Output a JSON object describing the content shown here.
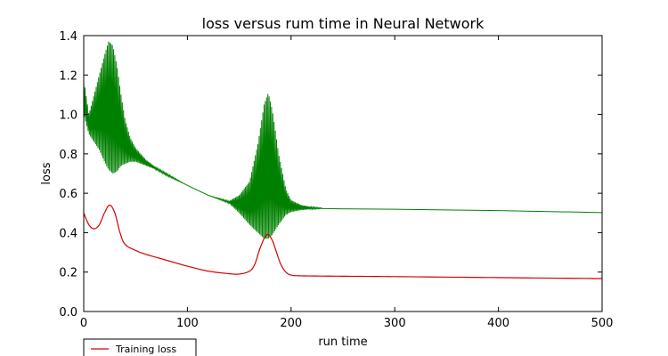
{
  "chart_data": {
    "type": "line",
    "title": "loss versus rum time in Neural Network",
    "xlabel": "run time",
    "ylabel": "loss",
    "xlim": [
      0,
      500
    ],
    "ylim": [
      0.0,
      1.4
    ],
    "xticks": [
      0,
      100,
      200,
      300,
      400,
      500
    ],
    "yticks": [
      0.0,
      0.2,
      0.4,
      0.6,
      0.8,
      1.0,
      1.2,
      1.4
    ],
    "xtick_labels": [
      "0",
      "100",
      "200",
      "300",
      "400",
      "500"
    ],
    "ytick_labels": [
      "0.0",
      "0.2",
      "0.4",
      "0.6",
      "0.8",
      "1.0",
      "1.2",
      "1.4"
    ],
    "grid": false,
    "legend_position": "below-left",
    "series": [
      {
        "name": "Training loss",
        "color": "#d40000",
        "style": "smooth",
        "x": [
          0,
          5,
          10,
          15,
          20,
          25,
          30,
          35,
          40,
          50,
          60,
          80,
          100,
          120,
          140,
          150,
          160,
          165,
          170,
          175,
          178,
          182,
          186,
          190,
          195,
          200,
          210,
          250,
          300,
          400,
          500
        ],
        "y": [
          0.5,
          0.44,
          0.42,
          0.44,
          0.5,
          0.54,
          0.5,
          0.4,
          0.34,
          0.31,
          0.29,
          0.26,
          0.23,
          0.205,
          0.192,
          0.19,
          0.205,
          0.24,
          0.32,
          0.38,
          0.39,
          0.36,
          0.3,
          0.24,
          0.2,
          0.185,
          0.181,
          0.179,
          0.177,
          0.172,
          0.167
        ]
      },
      {
        "color": "#008000",
        "style": "oscillating",
        "envelope_x": [
          0,
          5,
          10,
          15,
          20,
          24,
          28,
          32,
          36,
          40,
          45,
          50,
          55,
          60,
          70,
          80,
          100,
          120,
          140,
          150,
          160,
          168,
          174,
          178,
          182,
          188,
          195,
          200,
          210,
          220,
          230
        ],
        "envelope_upper": [
          1.18,
          1.0,
          1.1,
          1.2,
          1.3,
          1.37,
          1.35,
          1.25,
          1.1,
          0.97,
          0.88,
          0.83,
          0.8,
          0.77,
          0.73,
          0.7,
          0.64,
          0.59,
          0.56,
          0.59,
          0.66,
          0.85,
          1.05,
          1.11,
          1.02,
          0.8,
          0.62,
          0.565,
          0.54,
          0.53,
          0.525
        ],
        "envelope_lower": [
          1.0,
          0.9,
          0.86,
          0.82,
          0.76,
          0.72,
          0.7,
          0.71,
          0.74,
          0.75,
          0.76,
          0.76,
          0.75,
          0.74,
          0.72,
          0.69,
          0.64,
          0.59,
          0.55,
          0.5,
          0.44,
          0.4,
          0.37,
          0.37,
          0.39,
          0.44,
          0.49,
          0.505,
          0.515,
          0.52,
          0.522
        ],
        "tail_x": [
          230,
          300,
          400,
          500
        ],
        "tail_y": [
          0.522,
          0.519,
          0.512,
          0.502
        ]
      }
    ]
  }
}
